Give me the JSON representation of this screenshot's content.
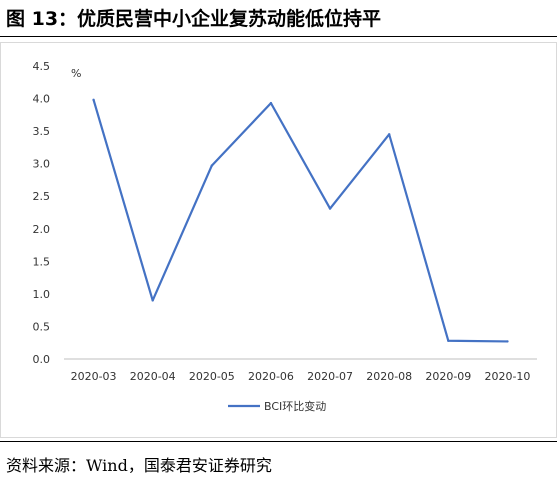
{
  "figure_title": "图 13：优质民营中小企业复苏动能低位持平",
  "source": "资料来源：Wind，国泰君安证券研究",
  "colors": {
    "line": "#4472c4",
    "axis": "#bfbfbf",
    "frame": "#d9d9d9"
  },
  "chart_data": {
    "type": "line",
    "title": "",
    "xlabel": "",
    "ylabel": "%",
    "categories": [
      "2020-03",
      "2020-04",
      "2020-05",
      "2020-06",
      "2020-07",
      "2020-08",
      "2020-09",
      "2020-10"
    ],
    "series": [
      {
        "name": "BCI环比变动",
        "values": [
          3.98,
          0.9,
          2.97,
          3.93,
          2.31,
          3.45,
          0.28,
          0.27
        ]
      }
    ],
    "ylim": [
      0.0,
      4.5
    ],
    "yticks": [
      "0.0",
      "0.5",
      "1.0",
      "1.5",
      "2.0",
      "2.5",
      "3.0",
      "3.5",
      "4.0",
      "4.5"
    ],
    "grid": false,
    "legend": "bottom"
  }
}
